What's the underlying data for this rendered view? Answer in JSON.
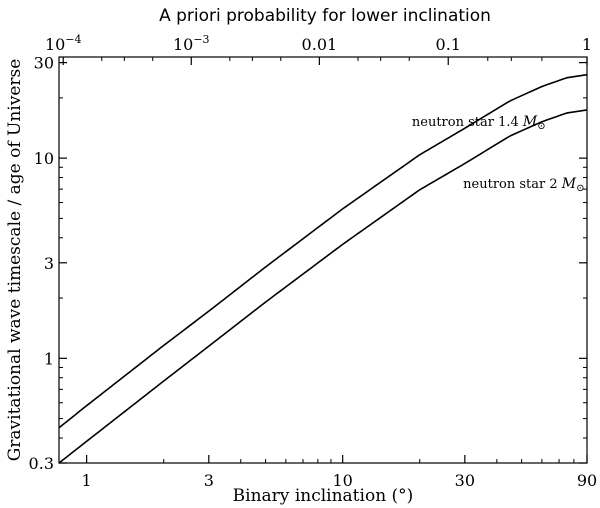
{
  "chart_data": {
    "type": "line",
    "xlabel": "Binary inclination (°)",
    "ylabel": "Gravitational wave timescale / age of Universe",
    "top_axis_title": "A priori probability for lower inclination",
    "x_scale": "log",
    "y_scale": "log",
    "xlim": [
      0.78,
      90
    ],
    "ylim": [
      0.3,
      32
    ],
    "x_ticks": [
      {
        "value": 1,
        "label": "1"
      },
      {
        "value": 3,
        "label": "3"
      },
      {
        "value": 10,
        "label": "10"
      },
      {
        "value": 30,
        "label": "30"
      },
      {
        "value": 90,
        "label": "90"
      }
    ],
    "y_ticks": [
      {
        "value": 0.3,
        "label": "0.3"
      },
      {
        "value": 1,
        "label": "1"
      },
      {
        "value": 3,
        "label": "3"
      },
      {
        "value": 10,
        "label": "10"
      },
      {
        "value": 30,
        "label": "30"
      }
    ],
    "top_ticks": [
      {
        "prob": 0.0001,
        "label_base": "10",
        "label_exp": "−4"
      },
      {
        "prob": 0.001,
        "label_base": "10",
        "label_exp": "−3"
      },
      {
        "prob": 0.01,
        "label_base": "0.01",
        "label_exp": ""
      },
      {
        "prob": 0.1,
        "label_base": "0.1",
        "label_exp": ""
      },
      {
        "prob": 1,
        "label_base": "1",
        "label_exp": ""
      }
    ],
    "series": [
      {
        "name": "neutron star 1.4 M⊙",
        "label_text": "neutron star 1.4 ",
        "label_symbol": "M",
        "label_sub": "⊙",
        "label_at_inclination": 34,
        "label_at_value": 14.5,
        "x": [
          0.78,
          1,
          2,
          3,
          5,
          10,
          20,
          30,
          45,
          60,
          75,
          90
        ],
        "y": [
          0.45,
          0.58,
          1.16,
          1.72,
          2.86,
          5.58,
          10.4,
          14.1,
          19.3,
          22.8,
          25.2,
          26.1
        ]
      },
      {
        "name": "neutron star 2 M⊙",
        "label_text": "neutron star 2 ",
        "label_symbol": "M",
        "label_sub": "⊙",
        "label_at_inclination": 51,
        "label_at_value": 7.1,
        "x": [
          0.78,
          1,
          2,
          3,
          5,
          10,
          20,
          30,
          45,
          60,
          75,
          90
        ],
        "y": [
          0.3,
          0.385,
          0.77,
          1.15,
          1.91,
          3.71,
          6.95,
          9.4,
          12.9,
          15.2,
          16.8,
          17.4
        ]
      }
    ]
  }
}
